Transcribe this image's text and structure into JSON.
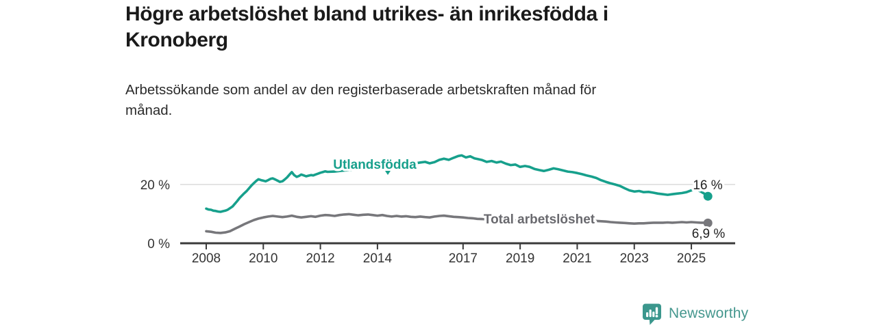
{
  "title": {
    "line1": "Högre arbetslöshet bland utrikes- än inrikesfödda i",
    "line2": "Kronoberg"
  },
  "subtitle": {
    "line1": "Arbetssökande som andel av den registerbaserade arbetskraften månad för",
    "line2": "månad."
  },
  "footer": {
    "brand": "Newsworthy",
    "logo_icon": "speech-bubble-bar-chart-icon"
  },
  "colors": {
    "series_foreign_born": "#17a08c",
    "series_total": "#77777b",
    "series_total_label": "#69696e",
    "axis": "#3a3a3a",
    "grid": "#dcdcdc",
    "tick_text": "#333333",
    "end_label_text": "#222222",
    "title_text": "#1a1a1a",
    "brand": "#45978e"
  },
  "chart_data": {
    "type": "line",
    "title": "Högre arbetslöshet bland utrikes- än inrikesfödda i Kronoberg",
    "subtitle": "Arbetssökande som andel av den registerbaserade arbetskraften månad för månad.",
    "xlabel": "",
    "ylabel": "",
    "grid": "horizontal (20 % only)",
    "legend_position": "inline series labels",
    "x_ticks": [
      "2008",
      "2010",
      "2012",
      "2014",
      "2017",
      "2019",
      "2021",
      "2023",
      "2025"
    ],
    "x_tick_years": [
      2008,
      2010,
      2012,
      2014,
      2017,
      2019,
      2021,
      2023,
      2025
    ],
    "y_ticks": [
      {
        "value": 0,
        "label": "0 %"
      },
      {
        "value": 20,
        "label": "20 %"
      }
    ],
    "ylim": [
      0,
      33
    ],
    "xlim": [
      2007.1,
      2026.5
    ],
    "series": [
      {
        "name": "Utlandsfödda",
        "color": "#17a08c",
        "end_label": "16 %",
        "end_value": 16.0,
        "points": [
          [
            2008.0,
            11.8
          ],
          [
            2008.08,
            11.5
          ],
          [
            2008.17,
            11.4
          ],
          [
            2008.25,
            11.1
          ],
          [
            2008.33,
            11.0
          ],
          [
            2008.42,
            10.8
          ],
          [
            2008.5,
            10.7
          ],
          [
            2008.58,
            10.9
          ],
          [
            2008.67,
            11.1
          ],
          [
            2008.75,
            11.4
          ],
          [
            2008.83,
            11.9
          ],
          [
            2008.92,
            12.5
          ],
          [
            2009.0,
            13.4
          ],
          [
            2009.08,
            14.3
          ],
          [
            2009.17,
            15.4
          ],
          [
            2009.25,
            16.2
          ],
          [
            2009.33,
            17.0
          ],
          [
            2009.42,
            17.8
          ],
          [
            2009.5,
            18.7
          ],
          [
            2009.58,
            19.6
          ],
          [
            2009.67,
            20.5
          ],
          [
            2009.75,
            21.2
          ],
          [
            2009.83,
            21.8
          ],
          [
            2009.92,
            21.5
          ],
          [
            2010.0,
            21.3
          ],
          [
            2010.08,
            21.1
          ],
          [
            2010.17,
            21.5
          ],
          [
            2010.25,
            21.9
          ],
          [
            2010.33,
            22.1
          ],
          [
            2010.42,
            21.7
          ],
          [
            2010.5,
            21.3
          ],
          [
            2010.58,
            20.9
          ],
          [
            2010.67,
            21.1
          ],
          [
            2010.75,
            21.7
          ],
          [
            2010.83,
            22.4
          ],
          [
            2010.92,
            23.4
          ],
          [
            2011.0,
            24.2
          ],
          [
            2011.08,
            23.2
          ],
          [
            2011.17,
            22.6
          ],
          [
            2011.25,
            22.9
          ],
          [
            2011.33,
            23.4
          ],
          [
            2011.42,
            23.1
          ],
          [
            2011.5,
            22.8
          ],
          [
            2011.58,
            23.0
          ],
          [
            2011.67,
            23.2
          ],
          [
            2011.75,
            23.1
          ],
          [
            2011.83,
            23.4
          ],
          [
            2011.92,
            23.7
          ],
          [
            2012.0,
            24.0
          ],
          [
            2012.08,
            24.2
          ],
          [
            2012.17,
            24.5
          ],
          [
            2012.25,
            24.3
          ],
          [
            2012.5,
            24.4
          ],
          [
            2012.75,
            24.7
          ],
          [
            2013.0,
            24.9
          ],
          [
            2013.25,
            25.2
          ],
          [
            2013.5,
            25.1
          ],
          [
            2013.75,
            25.4
          ],
          [
            2014.0,
            25.7
          ],
          [
            2014.25,
            26.0
          ],
          [
            2014.5,
            25.9
          ],
          [
            2014.75,
            26.3
          ],
          [
            2015.0,
            26.7
          ],
          [
            2015.25,
            27.1
          ],
          [
            2015.5,
            27.5
          ],
          [
            2015.67,
            27.7
          ],
          [
            2015.83,
            27.2
          ],
          [
            2016.0,
            27.6
          ],
          [
            2016.17,
            28.4
          ],
          [
            2016.33,
            28.8
          ],
          [
            2016.5,
            28.4
          ],
          [
            2016.67,
            29.1
          ],
          [
            2016.83,
            29.7
          ],
          [
            2016.95,
            29.9
          ],
          [
            2017.1,
            29.2
          ],
          [
            2017.25,
            29.6
          ],
          [
            2017.4,
            28.9
          ],
          [
            2017.5,
            28.7
          ],
          [
            2017.67,
            28.3
          ],
          [
            2017.83,
            27.7
          ],
          [
            2018.0,
            28.0
          ],
          [
            2018.17,
            27.5
          ],
          [
            2018.33,
            27.8
          ],
          [
            2018.5,
            27.1
          ],
          [
            2018.67,
            26.6
          ],
          [
            2018.83,
            26.8
          ],
          [
            2019.0,
            26.0
          ],
          [
            2019.17,
            26.3
          ],
          [
            2019.33,
            26.0
          ],
          [
            2019.5,
            25.3
          ],
          [
            2019.67,
            24.9
          ],
          [
            2019.83,
            24.6
          ],
          [
            2020.0,
            25.0
          ],
          [
            2020.17,
            25.5
          ],
          [
            2020.33,
            25.2
          ],
          [
            2020.5,
            24.8
          ],
          [
            2020.67,
            24.4
          ],
          [
            2020.83,
            24.2
          ],
          [
            2021.0,
            23.9
          ],
          [
            2021.17,
            23.5
          ],
          [
            2021.33,
            23.1
          ],
          [
            2021.5,
            22.7
          ],
          [
            2021.67,
            22.2
          ],
          [
            2021.83,
            21.5
          ],
          [
            2022.0,
            20.9
          ],
          [
            2022.17,
            20.4
          ],
          [
            2022.33,
            20.0
          ],
          [
            2022.5,
            19.5
          ],
          [
            2022.67,
            18.7
          ],
          [
            2022.83,
            18.0
          ],
          [
            2023.0,
            17.6
          ],
          [
            2023.17,
            17.8
          ],
          [
            2023.33,
            17.4
          ],
          [
            2023.5,
            17.5
          ],
          [
            2023.67,
            17.2
          ],
          [
            2023.83,
            16.9
          ],
          [
            2024.0,
            16.7
          ],
          [
            2024.17,
            16.5
          ],
          [
            2024.33,
            16.7
          ],
          [
            2024.5,
            16.9
          ],
          [
            2024.67,
            17.1
          ],
          [
            2024.83,
            17.4
          ],
          [
            2025.0,
            18.0
          ],
          [
            2025.17,
            18.3
          ],
          [
            2025.33,
            17.6
          ],
          [
            2025.45,
            16.9
          ],
          [
            2025.58,
            16.0
          ]
        ]
      },
      {
        "name": "Total arbetslöshet",
        "color": "#77777b",
        "end_label": "6,9 %",
        "end_value": 6.9,
        "points": [
          [
            2008.0,
            4.1
          ],
          [
            2008.17,
            3.9
          ],
          [
            2008.33,
            3.6
          ],
          [
            2008.5,
            3.5
          ],
          [
            2008.67,
            3.7
          ],
          [
            2008.83,
            4.1
          ],
          [
            2009.0,
            4.9
          ],
          [
            2009.17,
            5.7
          ],
          [
            2009.33,
            6.5
          ],
          [
            2009.5,
            7.2
          ],
          [
            2009.67,
            7.9
          ],
          [
            2009.83,
            8.4
          ],
          [
            2010.0,
            8.8
          ],
          [
            2010.17,
            9.1
          ],
          [
            2010.33,
            9.3
          ],
          [
            2010.5,
            9.1
          ],
          [
            2010.67,
            8.9
          ],
          [
            2010.83,
            9.1
          ],
          [
            2011.0,
            9.4
          ],
          [
            2011.17,
            9.0
          ],
          [
            2011.33,
            8.8
          ],
          [
            2011.5,
            9.0
          ],
          [
            2011.67,
            9.2
          ],
          [
            2011.83,
            9.0
          ],
          [
            2012.0,
            9.4
          ],
          [
            2012.17,
            9.6
          ],
          [
            2012.33,
            9.5
          ],
          [
            2012.5,
            9.3
          ],
          [
            2012.67,
            9.6
          ],
          [
            2012.83,
            9.8
          ],
          [
            2013.0,
            9.9
          ],
          [
            2013.17,
            9.7
          ],
          [
            2013.33,
            9.5
          ],
          [
            2013.5,
            9.7
          ],
          [
            2013.67,
            9.8
          ],
          [
            2013.83,
            9.6
          ],
          [
            2014.0,
            9.4
          ],
          [
            2014.17,
            9.6
          ],
          [
            2014.33,
            9.3
          ],
          [
            2014.5,
            9.1
          ],
          [
            2014.67,
            9.3
          ],
          [
            2014.83,
            9.1
          ],
          [
            2015.0,
            9.2
          ],
          [
            2015.17,
            9.0
          ],
          [
            2015.33,
            8.9
          ],
          [
            2015.5,
            9.1
          ],
          [
            2015.67,
            8.9
          ],
          [
            2015.83,
            8.8
          ],
          [
            2016.0,
            9.1
          ],
          [
            2016.17,
            9.3
          ],
          [
            2016.33,
            9.4
          ],
          [
            2016.5,
            9.2
          ],
          [
            2016.67,
            9.0
          ],
          [
            2016.83,
            8.9
          ],
          [
            2017.0,
            8.8
          ],
          [
            2017.17,
            8.6
          ],
          [
            2017.33,
            8.5
          ],
          [
            2017.5,
            8.3
          ],
          [
            2017.75,
            8.2
          ],
          [
            2018.0,
            8.1
          ],
          [
            2018.5,
            7.9
          ],
          [
            2019.0,
            7.7
          ],
          [
            2019.5,
            7.6
          ],
          [
            2020.0,
            7.9
          ],
          [
            2020.33,
            8.2
          ],
          [
            2020.67,
            8.1
          ],
          [
            2021.0,
            8.0
          ],
          [
            2021.5,
            7.7
          ],
          [
            2022.0,
            7.4
          ],
          [
            2022.17,
            7.2
          ],
          [
            2022.33,
            7.1
          ],
          [
            2022.5,
            7.0
          ],
          [
            2022.67,
            6.9
          ],
          [
            2022.83,
            6.8
          ],
          [
            2023.0,
            6.7
          ],
          [
            2023.17,
            6.8
          ],
          [
            2023.33,
            6.8
          ],
          [
            2023.5,
            6.9
          ],
          [
            2023.67,
            7.0
          ],
          [
            2023.83,
            7.0
          ],
          [
            2024.0,
            7.0
          ],
          [
            2024.17,
            7.1
          ],
          [
            2024.33,
            7.0
          ],
          [
            2024.5,
            7.1
          ],
          [
            2024.67,
            7.2
          ],
          [
            2024.83,
            7.1
          ],
          [
            2025.0,
            7.2
          ],
          [
            2025.17,
            7.1
          ],
          [
            2025.33,
            7.0
          ],
          [
            2025.45,
            7.0
          ],
          [
            2025.58,
            6.9
          ]
        ]
      }
    ]
  }
}
